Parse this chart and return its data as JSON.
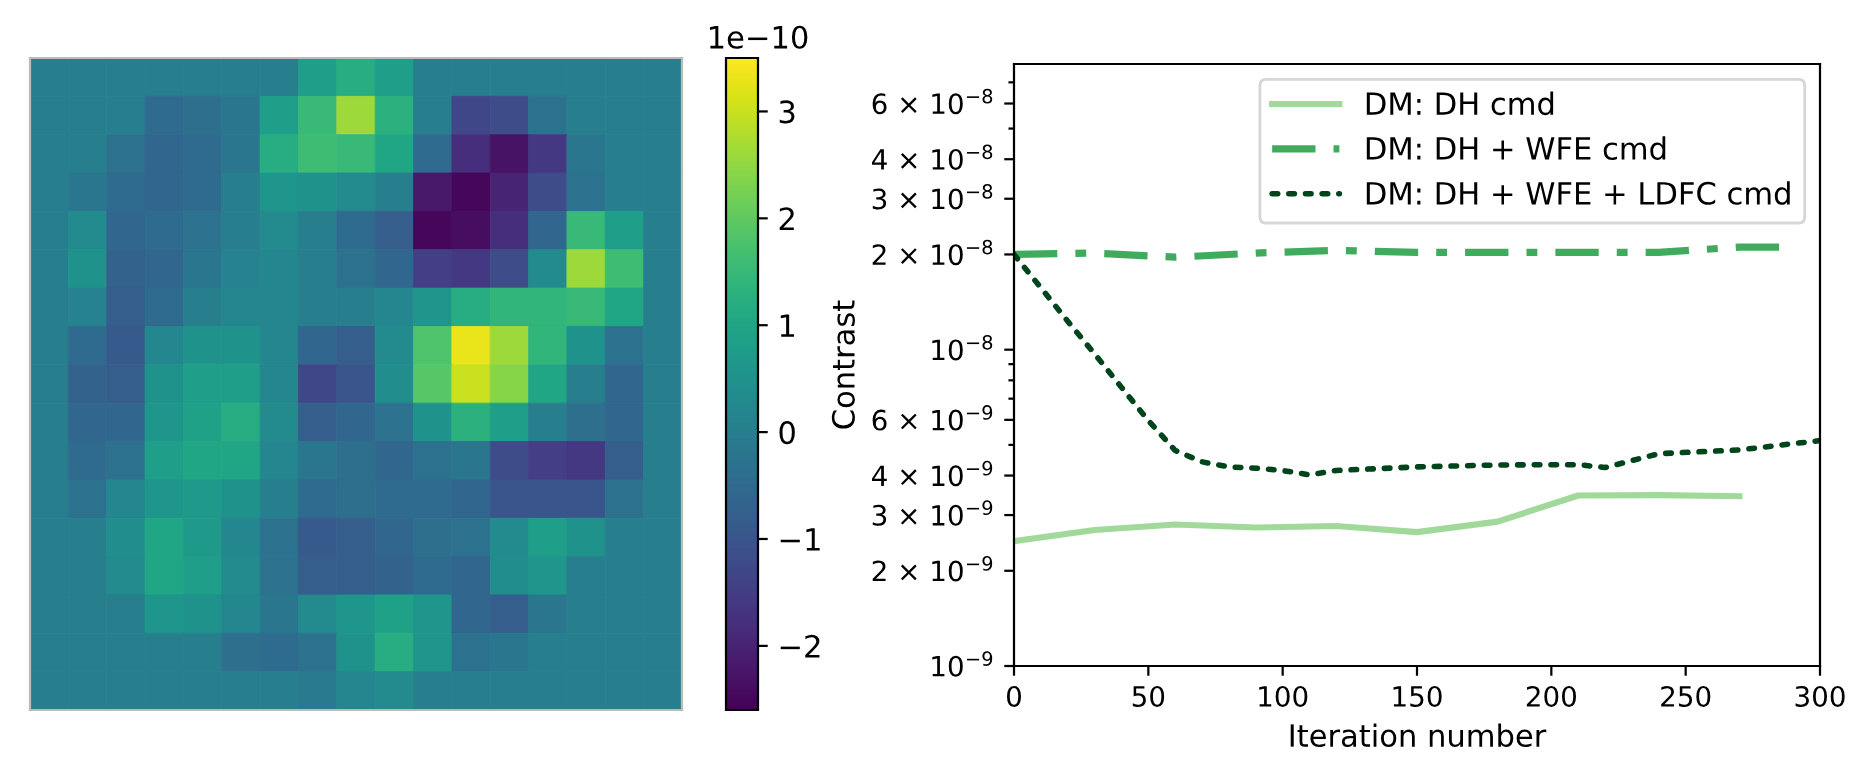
{
  "chart_data": [
    {
      "type": "heatmap",
      "categories": [
        null,
        null,
        null,
        null,
        null,
        null,
        null,
        null,
        null,
        null,
        null,
        null,
        null,
        null,
        null,
        null,
        null
      ],
      "y_categories": [
        null,
        null,
        null,
        null,
        null,
        null,
        null,
        null,
        null,
        null,
        null,
        null,
        null,
        null,
        null,
        null,
        null
      ],
      "cells": [
        [
          0,
          0,
          0,
          0,
          0,
          0,
          0,
          0.8,
          1.2,
          0.8,
          0,
          0,
          0,
          0,
          0,
          0,
          0
        ],
        [
          0,
          0,
          0,
          -0.5,
          -0.4,
          -0.2,
          0.8,
          1.5,
          2.6,
          1.3,
          0,
          -1.3,
          -1.2,
          -0.3,
          0,
          0,
          0
        ],
        [
          0,
          0,
          -0.3,
          -0.6,
          -0.5,
          -0.2,
          1.2,
          1.6,
          1.5,
          1.0,
          -0.5,
          -1.8,
          -2.3,
          -1.6,
          -0.2,
          0,
          0
        ],
        [
          0,
          -0.2,
          -0.5,
          -0.6,
          -0.5,
          0,
          0.6,
          0.5,
          0.3,
          0,
          -2.2,
          -2.5,
          -2.0,
          -1.2,
          -0.3,
          0,
          0
        ],
        [
          0,
          0.3,
          -0.6,
          -0.5,
          -0.3,
          0,
          0.3,
          0,
          -0.5,
          -0.8,
          -2.5,
          -2.4,
          -1.8,
          -0.6,
          1.5,
          0.8,
          0
        ],
        [
          0,
          0.5,
          -0.7,
          -0.6,
          -0.2,
          0.1,
          0.2,
          0,
          -0.3,
          -0.6,
          -1.5,
          -1.6,
          -1.2,
          0.3,
          2.6,
          1.6,
          0
        ],
        [
          0,
          0.1,
          -0.8,
          -0.5,
          0,
          0.2,
          0.2,
          0,
          0,
          0.2,
          0.6,
          1.2,
          1.4,
          1.4,
          1.5,
          1.0,
          0
        ],
        [
          0,
          -0.5,
          -0.9,
          0.2,
          0.5,
          0.5,
          0.2,
          -0.6,
          -0.8,
          0.3,
          1.8,
          3.3,
          2.6,
          1.4,
          0.5,
          -0.3,
          0
        ],
        [
          0,
          -0.7,
          -0.8,
          0.5,
          0.8,
          0.8,
          0.2,
          -1.3,
          -1.0,
          0.4,
          1.9,
          3.0,
          2.4,
          1.0,
          0,
          -0.6,
          0
        ],
        [
          0,
          -0.6,
          -0.6,
          0.6,
          0.9,
          1.2,
          0.3,
          -0.8,
          -0.6,
          -0.3,
          0.5,
          1.3,
          0.8,
          0,
          -0.4,
          -0.6,
          0
        ],
        [
          0,
          -0.5,
          -0.3,
          0.8,
          1.0,
          1.0,
          0.2,
          -0.2,
          -0.4,
          -0.6,
          -0.3,
          -0.2,
          -1.2,
          -1.5,
          -1.6,
          -0.8,
          0
        ],
        [
          0,
          -0.3,
          0.2,
          0.6,
          0.7,
          0.5,
          0,
          -0.5,
          -0.4,
          -0.5,
          -0.5,
          -0.6,
          -1.0,
          -1.0,
          -1.0,
          -0.3,
          0
        ],
        [
          0,
          0,
          0.4,
          1.0,
          0.7,
          0.2,
          -0.3,
          -0.9,
          -0.8,
          -0.6,
          -0.4,
          -0.3,
          0.3,
          0.8,
          0.5,
          0,
          0
        ],
        [
          0,
          0,
          0.3,
          1.0,
          0.8,
          0.3,
          -0.3,
          -0.8,
          -0.8,
          -0.7,
          -0.5,
          -0.6,
          0.4,
          0.6,
          0,
          0,
          0
        ],
        [
          0,
          0,
          0,
          0.6,
          0.5,
          0.2,
          -0.2,
          0.3,
          0.6,
          0.9,
          0.6,
          -0.6,
          -0.8,
          -0.2,
          0,
          0,
          0
        ],
        [
          0,
          0,
          0,
          0,
          0,
          -0.4,
          -0.5,
          -0.3,
          0.5,
          1.2,
          0.6,
          -0.3,
          -0.2,
          0,
          0,
          0,
          0
        ],
        [
          0,
          0,
          0,
          0,
          0,
          0,
          0,
          -0.1,
          0.2,
          0.3,
          0,
          0,
          0,
          0,
          0,
          0,
          0
        ]
      ],
      "clim": [
        -2.6,
        3.5
      ],
      "cticks": [
        {
          "value": -2,
          "label": "−2"
        },
        {
          "value": -1,
          "label": "−1"
        },
        0,
        1,
        2,
        3
      ],
      "annotations": [
        "1e−10"
      ]
    },
    {
      "type": "line",
      "xlabel": "Iteration number",
      "ylabel": "Contrast",
      "log": "y",
      "grid": false,
      "legend": "top right",
      "xlim": [
        0,
        300
      ],
      "xticks": [
        0,
        50,
        100,
        150,
        200,
        250,
        300
      ],
      "ylim": [
        1e-09,
        8e-08
      ],
      "yticks": [
        {
          "value": 1e-09,
          "label": "10$^{−9}$"
        },
        {
          "value": 2e-09,
          "label": "2 × 10$^{−9}$"
        },
        {
          "value": 3e-09,
          "label": "3 × 10$^{−9}$"
        },
        {
          "value": 4e-09,
          "label": "4 × 10$^{−9}$"
        },
        {
          "value": 5e-09,
          "label": null
        },
        {
          "value": 6e-09,
          "label": "6 × 10$^{−9}$"
        },
        {
          "value": 7e-09,
          "label": null
        },
        {
          "value": 8e-09,
          "label": null
        },
        {
          "value": 9e-09,
          "label": null
        },
        {
          "value": 1e-08,
          "label": "10$^{−8}$"
        },
        {
          "value": 2e-08,
          "label": "2 × 10$^{−8}$"
        },
        {
          "value": 3e-08,
          "label": "3 × 10$^{−8}$"
        },
        {
          "value": 4e-08,
          "label": "4 × 10$^{−8}$"
        },
        {
          "value": 5e-08,
          "label": null
        },
        {
          "value": 6e-08,
          "label": "6 × 10$^{−8}$"
        },
        {
          "value": 7e-08,
          "label": null
        }
      ],
      "series": [
        {
          "name": "DM: DH cmd",
          "color": "#a1d99b",
          "line_style": "solid",
          "x": [
            0,
            30,
            60,
            90,
            120,
            150,
            180,
            210,
            240,
            270
          ],
          "values": [
            2.48e-09,
            2.69e-09,
            2.8e-09,
            2.74e-09,
            2.77e-09,
            2.65e-09,
            2.86e-09,
            3.46e-09,
            3.47e-09,
            3.44e-09
          ]
        },
        {
          "name": "DM: DH + WFE cmd",
          "color": "#41ab5d",
          "line_style": "dashed",
          "x": [
            0,
            30,
            60,
            90,
            120,
            150,
            180,
            210,
            240,
            270,
            285
          ],
          "values": [
            2e-08,
            2.02e-08,
            1.96e-08,
            2.02e-08,
            2.06e-08,
            2.03e-08,
            2.03e-08,
            2.03e-08,
            2.03e-08,
            2.11e-08,
            2.11e-08
          ]
        },
        {
          "name": "DM: DH + WFE + LDFC cmd",
          "color": "#00441b",
          "line_style": "dotted",
          "x": [
            0,
            10,
            20,
            30,
            40,
            50,
            60,
            70,
            80,
            90,
            100,
            110,
            120,
            150,
            180,
            210,
            220,
            240,
            270,
            300
          ],
          "values": [
            2e-08,
            1.57e-08,
            1.23e-08,
            9.7e-09,
            7.6e-09,
            5.97e-09,
            4.8e-09,
            4.42e-09,
            4.26e-09,
            4.22e-09,
            4.15e-09,
            4.02e-09,
            4.15e-09,
            4.26e-09,
            4.32e-09,
            4.33e-09,
            4.24e-09,
            4.69e-09,
            4.82e-09,
            5.16e-09
          ]
        }
      ]
    }
  ]
}
